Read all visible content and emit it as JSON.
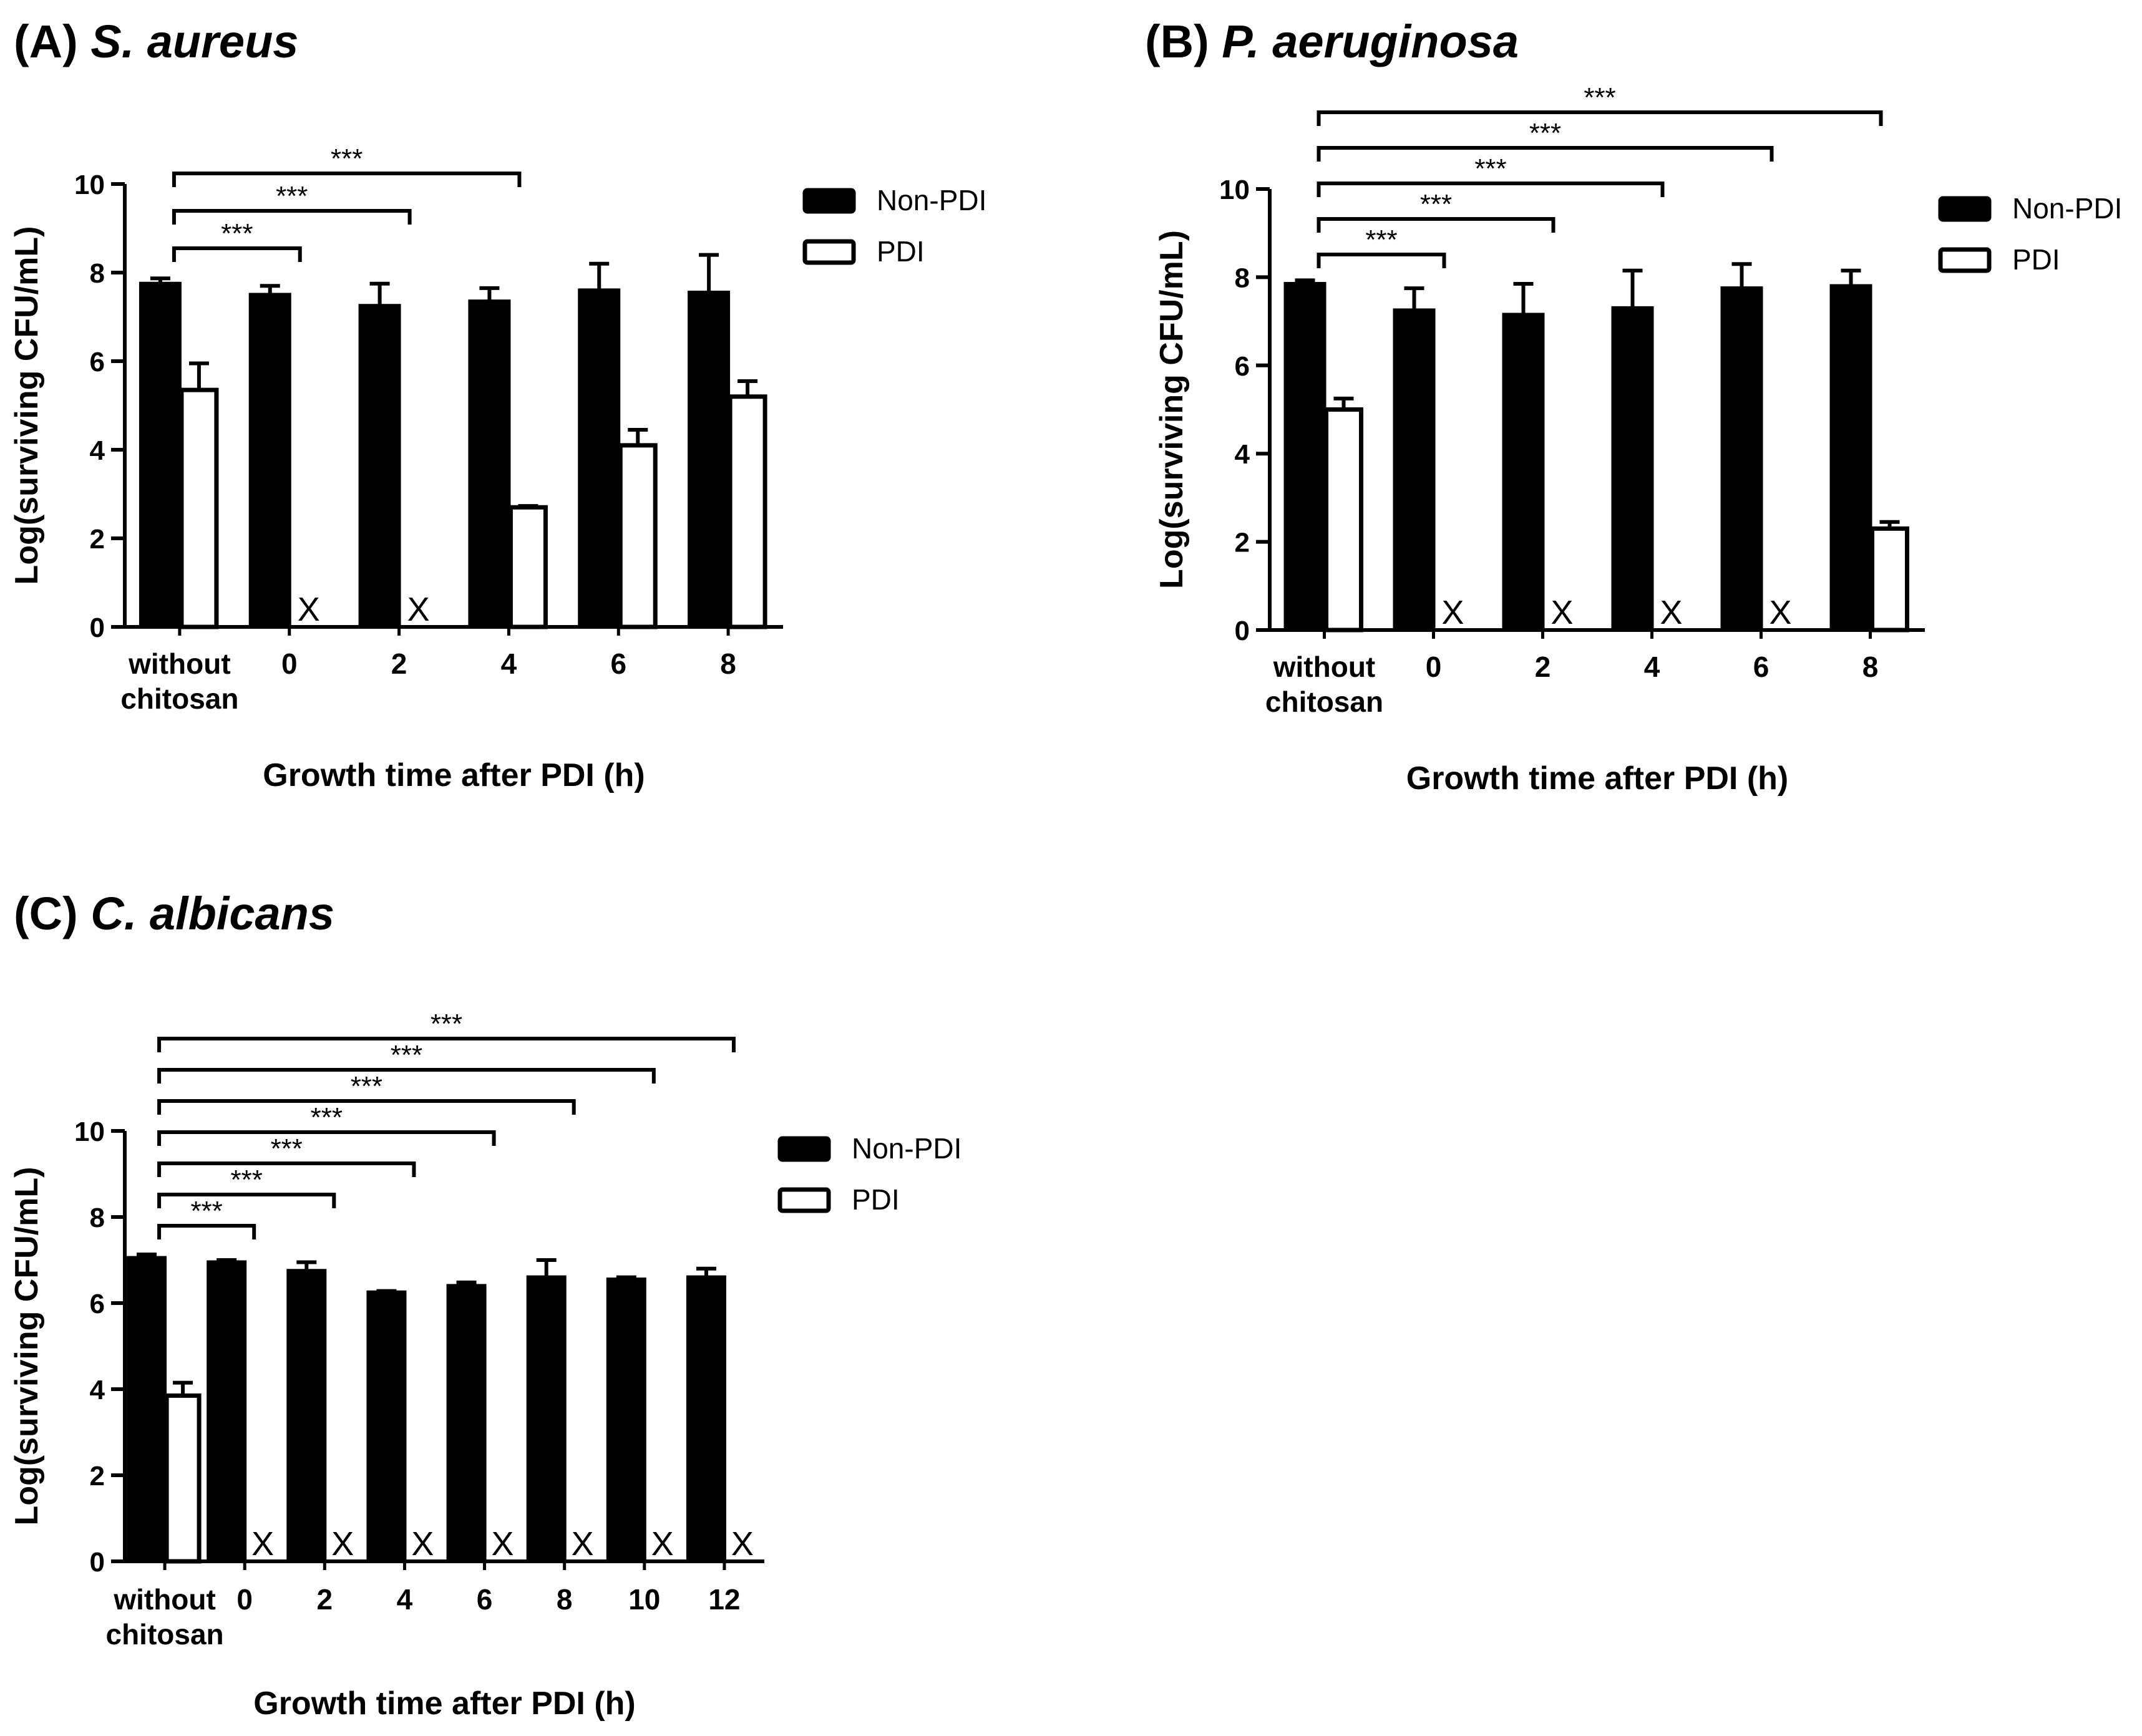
{
  "figure": {
    "colors": {
      "non_pdi": "#000000",
      "pdi": "#ffffff",
      "stroke": "#000000"
    }
  },
  "chart_data": [
    {
      "type": "bar",
      "panel": "(A)",
      "organism": "S. aureus",
      "title": "(A) S. aureus",
      "xlabel": "Growth time after PDI (h)",
      "ylabel": "Log(surviving CFU/mL)",
      "ylim": [
        0,
        10
      ],
      "yticks": [
        "0",
        "2",
        "4",
        "6",
        "8",
        "10"
      ],
      "categories": [
        [
          "without",
          "chitosan"
        ],
        [
          "0"
        ],
        [
          "2"
        ],
        [
          "4"
        ],
        [
          "6"
        ],
        [
          "8"
        ]
      ],
      "series": [
        {
          "name": "Non-PDI",
          "values": [
            7.75,
            7.5,
            7.25,
            7.35,
            7.6,
            7.55
          ],
          "errors": [
            0.12,
            0.2,
            0.5,
            0.3,
            0.6,
            0.85
          ]
        },
        {
          "name": "PDI",
          "values": [
            5.35,
            0,
            0,
            2.7,
            4.1,
            5.2
          ],
          "errors": [
            0.6,
            0,
            0,
            0.03,
            0.35,
            0.35
          ]
        }
      ],
      "undetected_marker": "X",
      "significance": [
        {
          "from": 0,
          "to": 1,
          "label": "***"
        },
        {
          "from": 0,
          "to": 2,
          "label": "***"
        },
        {
          "from": 0,
          "to": 3,
          "label": "***"
        }
      ],
      "legend": {
        "position": "top-right",
        "entries": [
          "Non-PDI",
          "PDI"
        ]
      }
    },
    {
      "type": "bar",
      "panel": "(B)",
      "organism": "P. aeruginosa",
      "title": "(B) P. aeruginosa",
      "xlabel": "Growth time after PDI (h)",
      "ylabel": "Log(surviving CFU/mL)",
      "ylim": [
        0,
        10
      ],
      "yticks": [
        "0",
        "2",
        "4",
        "6",
        "8",
        "10"
      ],
      "categories": [
        [
          "without",
          "chitosan"
        ],
        [
          "0"
        ],
        [
          "2"
        ],
        [
          "4"
        ],
        [
          "6"
        ],
        [
          "8"
        ]
      ],
      "series": [
        {
          "name": "Non-PDI",
          "values": [
            7.85,
            7.25,
            7.15,
            7.3,
            7.75,
            7.8
          ],
          "errors": [
            0.08,
            0.5,
            0.7,
            0.85,
            0.55,
            0.35
          ]
        },
        {
          "name": "PDI",
          "values": [
            5.0,
            0,
            0,
            0,
            0,
            2.3
          ],
          "errors": [
            0.25,
            0,
            0,
            0,
            0,
            0.15
          ]
        }
      ],
      "undetected_marker": "X",
      "significance": [
        {
          "from": 0,
          "to": 1,
          "label": "***"
        },
        {
          "from": 0,
          "to": 2,
          "label": "***"
        },
        {
          "from": 0,
          "to": 3,
          "label": "***"
        },
        {
          "from": 0,
          "to": 4,
          "label": "***"
        },
        {
          "from": 0,
          "to": 5,
          "label": "***"
        }
      ],
      "legend": {
        "position": "top-right",
        "entries": [
          "Non-PDI",
          "PDI"
        ]
      }
    },
    {
      "type": "bar",
      "panel": "(C)",
      "organism": "C. albicans",
      "title": "(C) C. albicans",
      "xlabel": "Growth time after PDI (h)",
      "ylabel": "Log(surviving CFU/mL)",
      "ylim": [
        0,
        10
      ],
      "yticks": [
        "0",
        "2",
        "4",
        "6",
        "8",
        "10"
      ],
      "categories": [
        [
          "without",
          "chitosan"
        ],
        [
          "0"
        ],
        [
          "2"
        ],
        [
          "4"
        ],
        [
          "6"
        ],
        [
          "8"
        ],
        [
          "10"
        ],
        [
          "12"
        ]
      ],
      "series": [
        {
          "name": "Non-PDI",
          "values": [
            7.05,
            6.95,
            6.75,
            6.25,
            6.4,
            6.6,
            6.55,
            6.6
          ],
          "errors": [
            0.08,
            0.05,
            0.2,
            0.03,
            0.08,
            0.4,
            0.05,
            0.2
          ]
        },
        {
          "name": "PDI",
          "values": [
            3.85,
            0,
            0,
            0,
            0,
            0,
            0,
            0
          ],
          "errors": [
            0.3,
            0,
            0,
            0,
            0,
            0,
            0,
            0
          ]
        }
      ],
      "undetected_marker": "X",
      "significance": [
        {
          "from": 0,
          "to": 1,
          "label": "***"
        },
        {
          "from": 0,
          "to": 2,
          "label": "***"
        },
        {
          "from": 0,
          "to": 3,
          "label": "***"
        },
        {
          "from": 0,
          "to": 4,
          "label": "***"
        },
        {
          "from": 0,
          "to": 5,
          "label": "***"
        },
        {
          "from": 0,
          "to": 6,
          "label": "***"
        },
        {
          "from": 0,
          "to": 7,
          "label": "***"
        }
      ],
      "legend": {
        "position": "top-right",
        "entries": [
          "Non-PDI",
          "PDI"
        ]
      }
    }
  ]
}
